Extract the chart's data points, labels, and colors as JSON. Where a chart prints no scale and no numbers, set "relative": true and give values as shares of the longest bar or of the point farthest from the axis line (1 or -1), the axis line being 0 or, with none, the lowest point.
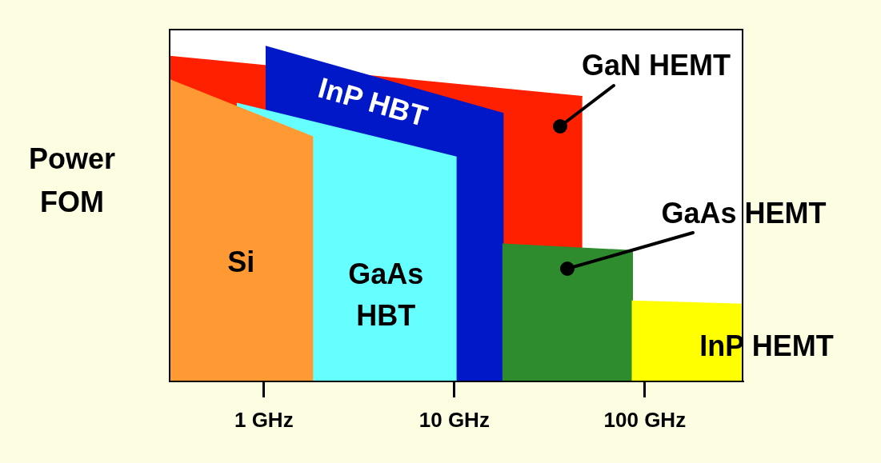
{
  "chart_data": {
    "type": "area",
    "relative": true,
    "ylabel": "Power FOM",
    "log": "x",
    "grid": false,
    "xlim": [
      0.32,
      326
    ],
    "xticks": [
      {
        "value": 1,
        "label": "1 GHz"
      },
      {
        "value": 10,
        "label": "10 GHz"
      },
      {
        "value": 100,
        "label": "100 GHz"
      }
    ],
    "series": [
      {
        "name": "GaN HEMT",
        "color": "#ff2000",
        "x": [
          0.32,
          47
        ],
        "values": [
          0.97,
          0.85
        ]
      },
      {
        "name": "InP HBT",
        "color": "#0018c8",
        "x": [
          1.02,
          18,
          18
        ],
        "values": [
          1,
          0.8,
          0
        ]
      },
      {
        "name": "GaAs HBT",
        "color": "#66ffff",
        "x": [
          0.72,
          10.2,
          10.2
        ],
        "values": [
          0.83,
          0.67,
          0
        ]
      },
      {
        "name": "Si",
        "color": "#ff9933",
        "x": [
          0.32,
          0.32,
          1.8,
          1.8
        ],
        "values": [
          0,
          0.9,
          0.73,
          0
        ]
      },
      {
        "name": "GaAs HEMT",
        "color": "#2e8b2e",
        "x": [
          18,
          18,
          86,
          86
        ],
        "values": [
          0,
          0.41,
          0.39,
          0
        ]
      },
      {
        "name": "InP HEMT",
        "color": "#ffff00",
        "x": [
          86,
          86,
          326,
          326
        ],
        "values": [
          0,
          0.24,
          0.23,
          0
        ]
      }
    ]
  }
}
